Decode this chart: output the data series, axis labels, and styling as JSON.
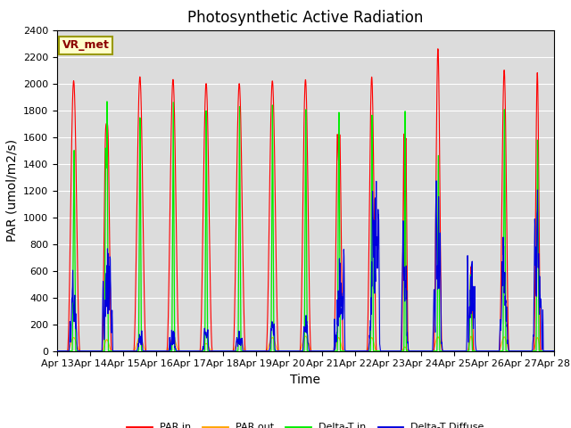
{
  "title": "Photosynthetic Active Radiation",
  "ylabel": "PAR (umol/m2/s)",
  "xlabel": "Time",
  "annotation": "VR_met",
  "legend": [
    "PAR in",
    "PAR out",
    "Delta-T in",
    "Delta-T Diffuse"
  ],
  "colors": {
    "PAR_in": "#ff0000",
    "PAR_out": "#ffa500",
    "Delta_T_in": "#00ee00",
    "Delta_T_Diffuse": "#0000dd"
  },
  "ylim": [
    0,
    2400
  ],
  "bg_color": "#dcdcdc",
  "title_fontsize": 12,
  "label_fontsize": 10,
  "tick_fontsize": 8,
  "annotation_fontsize": 9,
  "annotation_fontcolor": "#8B0000",
  "annotation_bgcolor": "#ffffcc",
  "annotation_edgecolor": "#999900",
  "xtick_labels": [
    "Apr 13",
    "Apr 14",
    "Apr 15",
    "Apr 16",
    "Apr 17",
    "Apr 18",
    "Apr 19",
    "Apr 20",
    "Apr 21",
    "Apr 22",
    "Apr 23",
    "Apr 24",
    "Apr 25",
    "Apr 26",
    "Apr 27",
    "Apr 28"
  ],
  "ytick_vals": [
    0,
    200,
    400,
    600,
    800,
    1000,
    1200,
    1400,
    1600,
    1800,
    2000,
    2200,
    2400
  ]
}
